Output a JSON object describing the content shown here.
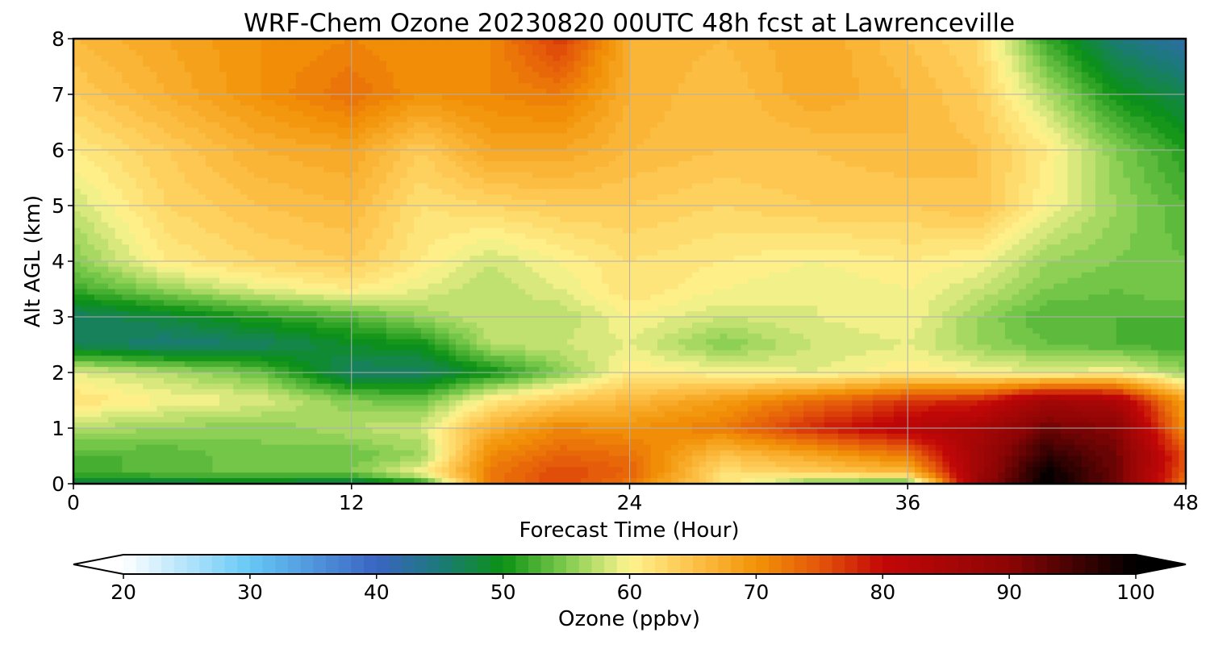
{
  "chart_data": {
    "type": "heatmap",
    "title": "WRF-Chem Ozone  20230820 00UTC 48h fcst at Lawrenceville",
    "xlabel": "Forecast Time (Hour)",
    "ylabel": "Alt AGL (km)",
    "xlim": [
      0,
      48
    ],
    "ylim": [
      0,
      8
    ],
    "xticks": [
      0,
      12,
      24,
      36,
      48
    ],
    "yticks": [
      0,
      1,
      2,
      3,
      4,
      5,
      6,
      7,
      8
    ],
    "grid": true,
    "colorbar": {
      "label": "Ozone  (ppbv)",
      "min": 20,
      "max": 100,
      "step": 1,
      "ticks": [
        20,
        30,
        40,
        50,
        60,
        70,
        80,
        90,
        100
      ],
      "extend": "both",
      "extend_min_color": "#ffffff",
      "extend_max_color": "#000000",
      "colormap_stops": [
        [
          20,
          "#ffffff"
        ],
        [
          30,
          "#66c8f5"
        ],
        [
          40,
          "#3a64c4"
        ],
        [
          45,
          "#1c7a7a"
        ],
        [
          50,
          "#0b9114"
        ],
        [
          55,
          "#80cc4e"
        ],
        [
          60,
          "#fff490"
        ],
        [
          65,
          "#fdc24a"
        ],
        [
          70,
          "#f29307"
        ],
        [
          75,
          "#e4560a"
        ],
        [
          80,
          "#c30707"
        ],
        [
          90,
          "#8c0505"
        ],
        [
          100,
          "#000000"
        ]
      ]
    },
    "x_hours": [
      0,
      4,
      8,
      12,
      15,
      18,
      21,
      24,
      28,
      32,
      36,
      39,
      42,
      45,
      48
    ],
    "y_km": [
      0,
      0.2,
      0.5,
      1,
      1.5,
      2,
      2.5,
      3,
      3.5,
      4,
      5,
      6,
      7,
      8
    ],
    "z_ppbv": [
      [
        48,
        47,
        48,
        46,
        50,
        72,
        76,
        72,
        62,
        54,
        52,
        88,
        100,
        92,
        72
      ],
      [
        52,
        54,
        54,
        55,
        60,
        72,
        76,
        74,
        62,
        64,
        66,
        86,
        100,
        92,
        74
      ],
      [
        53,
        53,
        55,
        54,
        56,
        71,
        74,
        73,
        65,
        68,
        72,
        86,
        97,
        92,
        75
      ],
      [
        57,
        56,
        55,
        57,
        58,
        67,
        71,
        70,
        72,
        78,
        82,
        85,
        92,
        90,
        70
      ],
      [
        62,
        60,
        59,
        55,
        54,
        61,
        64,
        66,
        69,
        73,
        77,
        78,
        86,
        84,
        68
      ],
      [
        59,
        57,
        54,
        46,
        46,
        50,
        55,
        61,
        60,
        59,
        61,
        60,
        59,
        60,
        56
      ],
      [
        47,
        45,
        46,
        49,
        50,
        57,
        58,
        59,
        55,
        58,
        59,
        56,
        54,
        53,
        52
      ],
      [
        46,
        48,
        51,
        53,
        56,
        58,
        57,
        60,
        58,
        59,
        60,
        56,
        53,
        53,
        53
      ],
      [
        52,
        56,
        59,
        61,
        59,
        57,
        59,
        62,
        60,
        59,
        60,
        58,
        55,
        54,
        55
      ],
      [
        55,
        61,
        63,
        64,
        61,
        58,
        60,
        62,
        61,
        60,
        61,
        60,
        56,
        55,
        54
      ],
      [
        58,
        63,
        65,
        66,
        62,
        63,
        64,
        64,
        63,
        64,
        64,
        65,
        60,
        56,
        53
      ],
      [
        61,
        64,
        67,
        68,
        64,
        68,
        68,
        66,
        65,
        65,
        66,
        65,
        61,
        55,
        51
      ],
      [
        64,
        67,
        70,
        73,
        70,
        71,
        72,
        67,
        65,
        68,
        66,
        64,
        57,
        50,
        47
      ],
      [
        66,
        68,
        70,
        71,
        70,
        71,
        77,
        67,
        66,
        68,
        65,
        63,
        52,
        45,
        42
      ]
    ]
  }
}
